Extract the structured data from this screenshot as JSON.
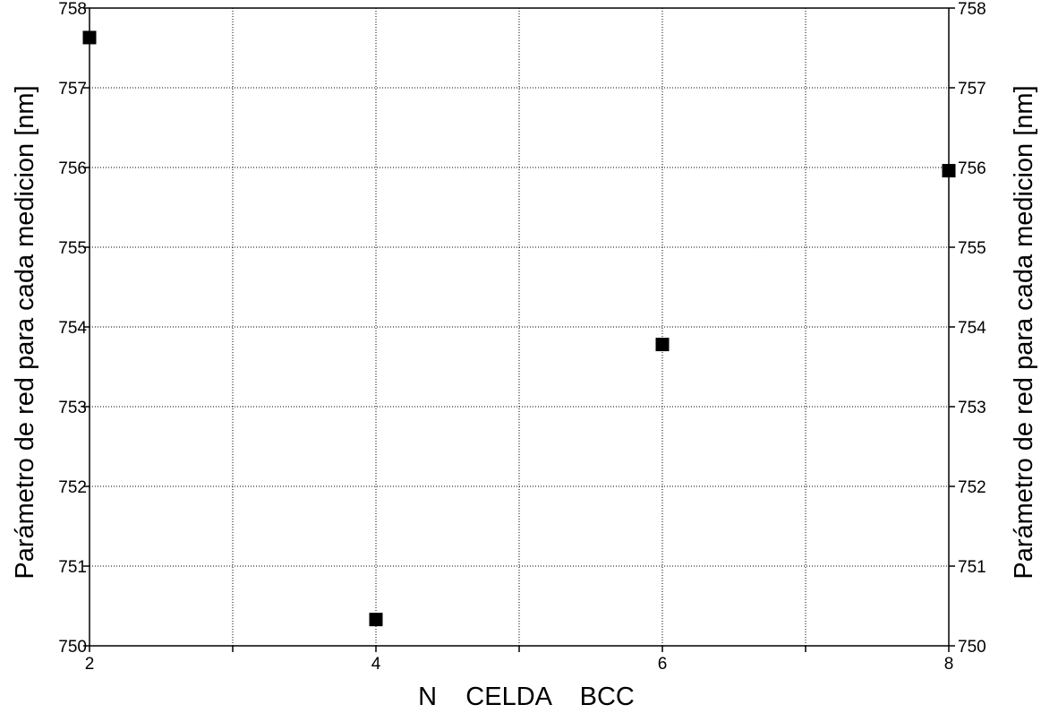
{
  "chart_data": {
    "type": "scatter",
    "title": "",
    "xlabel": "N    CELDA    BCC",
    "ylabel": "Parámetro de red para cada medicion [nm]",
    "ylabel_right": "Parámetro de red para cada medicion [nm]",
    "xlim": [
      2,
      8
    ],
    "ylim": [
      750,
      758
    ],
    "x_ticks": [
      2,
      3,
      4,
      5,
      6,
      7,
      8
    ],
    "x_tick_labels": [
      "2",
      "",
      "4",
      "",
      "6",
      "",
      "8"
    ],
    "y_ticks": [
      750,
      751,
      752,
      753,
      754,
      755,
      756,
      757,
      758
    ],
    "y_tick_labels": [
      "750",
      "751",
      "752",
      "753",
      "754",
      "755",
      "756",
      "757",
      "758"
    ],
    "grid": true,
    "marker": "square",
    "marker_color": "#000000",
    "series": [
      {
        "x": [
          2,
          4,
          6,
          8
        ],
        "y": [
          757.63,
          750.33,
          753.78,
          755.96
        ]
      }
    ]
  }
}
